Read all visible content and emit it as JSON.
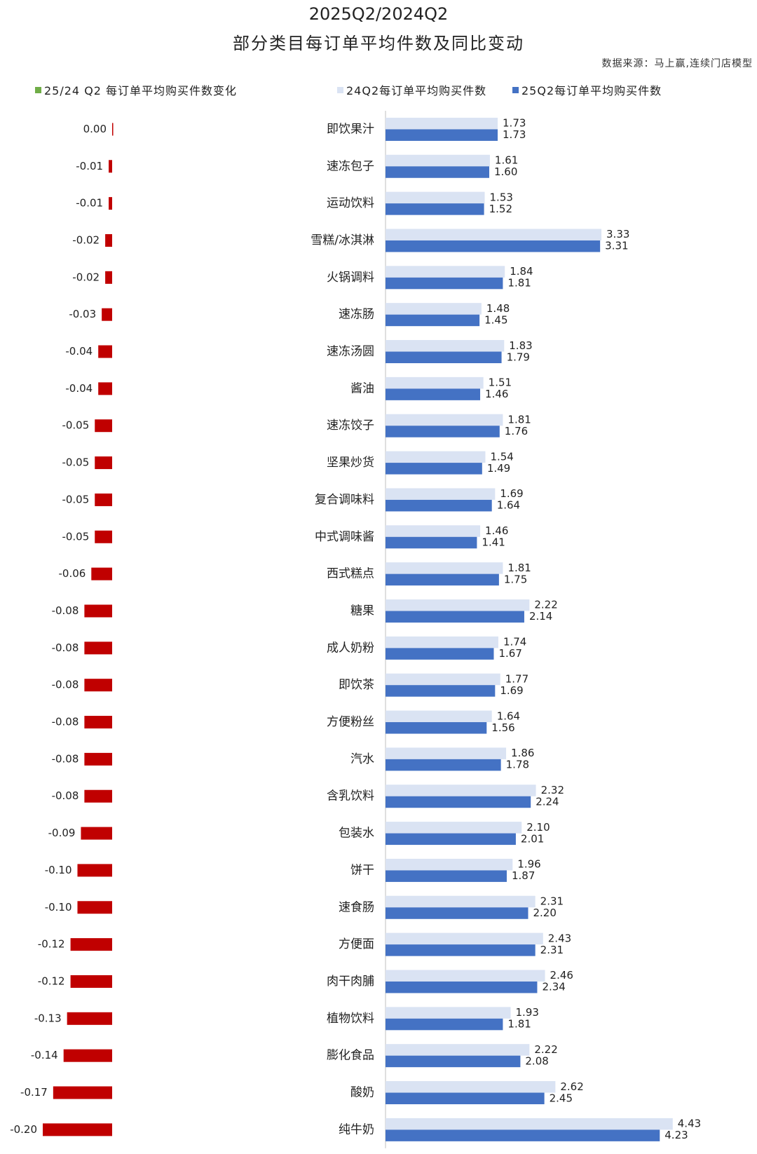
{
  "title_line1": "2025Q2/2024Q2",
  "title_line2": "部分类目每订单平均件数及同比变动",
  "source": "数据来源：马上赢,连续门店模型",
  "colors": {
    "change_positive": "#70ad47",
    "change_negative": "#c00000",
    "q24": "#dae3f3",
    "q25": "#4472c4",
    "axis": "#bfbfbf"
  },
  "legend": {
    "change": "25/24 Q2 每订单平均购买件数变化",
    "q24": "24Q2每订单平均购买件数",
    "q25": "25Q2每订单平均购买件数"
  },
  "chart_data": {
    "type": "bar",
    "orientation": "horizontal",
    "categories": [
      "即饮果汁",
      "速冻包子",
      "运动饮料",
      "雪糕/冰淇淋",
      "火锅调料",
      "速冻肠",
      "速冻汤圆",
      "酱油",
      "速冻饺子",
      "坚果炒货",
      "复合调味料",
      "中式调味酱",
      "西式糕点",
      "糖果",
      "成人奶粉",
      "即饮茶",
      "方便粉丝",
      "汽水",
      "含乳饮料",
      "包装水",
      "饼干",
      "速食肠",
      "方便面",
      "肉干肉脯",
      "植物饮料",
      "膨化食品",
      "酸奶",
      "纯牛奶"
    ],
    "series": [
      {
        "name": "25/24 Q2 每订单平均购买件数变化",
        "values": [
          0.0,
          -0.01,
          -0.01,
          -0.02,
          -0.02,
          -0.03,
          -0.04,
          -0.04,
          -0.05,
          -0.05,
          -0.05,
          -0.05,
          -0.06,
          -0.08,
          -0.08,
          -0.08,
          -0.08,
          -0.08,
          -0.08,
          -0.09,
          -0.1,
          -0.1,
          -0.12,
          -0.12,
          -0.13,
          -0.14,
          -0.17,
          -0.2
        ]
      },
      {
        "name": "24Q2每订单平均购买件数",
        "values": [
          1.73,
          1.61,
          1.53,
          3.33,
          1.84,
          1.48,
          1.83,
          1.51,
          1.81,
          1.54,
          1.69,
          1.46,
          1.81,
          2.22,
          1.74,
          1.77,
          1.64,
          1.86,
          2.32,
          2.1,
          1.96,
          2.31,
          2.43,
          2.46,
          1.93,
          2.22,
          2.62,
          4.43
        ]
      },
      {
        "name": "25Q2每订单平均购买件数",
        "values": [
          1.73,
          1.6,
          1.52,
          3.31,
          1.81,
          1.45,
          1.79,
          1.46,
          1.76,
          1.49,
          1.64,
          1.41,
          1.75,
          2.14,
          1.67,
          1.69,
          1.56,
          1.78,
          2.24,
          2.01,
          1.87,
          2.2,
          2.31,
          2.34,
          1.81,
          2.08,
          2.45,
          4.23
        ]
      }
    ],
    "xlim_change": [
      -0.2,
      0
    ],
    "xlim_value": [
      0,
      4.5
    ],
    "grid": false,
    "legend_position": "top"
  }
}
